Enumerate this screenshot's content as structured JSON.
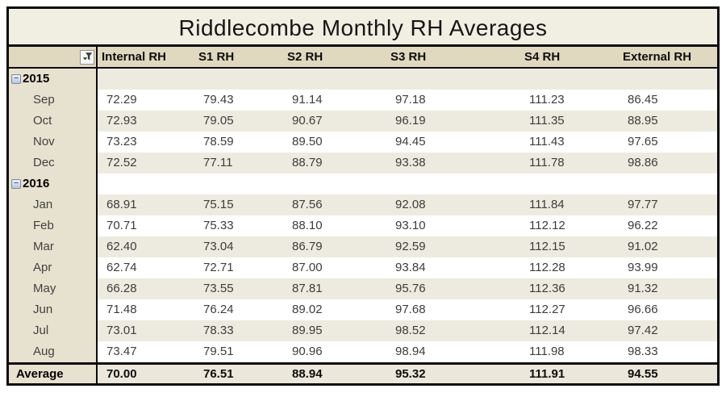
{
  "table": {
    "title": "Riddlecombe Monthly RH Averages",
    "collapse_glyph": "−",
    "columns": [
      "Internal RH",
      "S1 RH",
      "S2 RH",
      "S3 RH",
      "S4 RH",
      "External RH"
    ],
    "rows": [
      {
        "type": "group",
        "label": "2015",
        "values": [
          "",
          "",
          "",
          "",
          "",
          ""
        ]
      },
      {
        "type": "month",
        "label": "Sep",
        "values": [
          "72.29",
          "79.43",
          "91.14",
          "97.18",
          "111.23",
          "86.45"
        ]
      },
      {
        "type": "month",
        "label": "Oct",
        "values": [
          "72.93",
          "79.05",
          "90.67",
          "96.19",
          "111.35",
          "88.95"
        ]
      },
      {
        "type": "month",
        "label": "Nov",
        "values": [
          "73.23",
          "78.59",
          "89.50",
          "94.45",
          "111.43",
          "97.65"
        ]
      },
      {
        "type": "month",
        "label": "Dec",
        "values": [
          "72.52",
          "77.11",
          "88.79",
          "93.38",
          "111.78",
          "98.86"
        ]
      },
      {
        "type": "group",
        "label": "2016",
        "values": [
          "",
          "",
          "",
          "",
          "",
          ""
        ]
      },
      {
        "type": "month",
        "label": "Jan",
        "values": [
          "68.91",
          "75.15",
          "87.56",
          "92.08",
          "111.84",
          "97.77"
        ]
      },
      {
        "type": "month",
        "label": "Feb",
        "values": [
          "70.71",
          "75.33",
          "88.10",
          "93.10",
          "112.12",
          "96.22"
        ]
      },
      {
        "type": "month",
        "label": "Mar",
        "values": [
          "62.40",
          "73.04",
          "86.79",
          "92.59",
          "112.15",
          "91.02"
        ]
      },
      {
        "type": "month",
        "label": "Apr",
        "values": [
          "62.74",
          "72.71",
          "87.00",
          "93.84",
          "112.28",
          "93.99"
        ]
      },
      {
        "type": "month",
        "label": "May",
        "values": [
          "66.28",
          "73.55",
          "87.81",
          "95.76",
          "112.36",
          "91.32"
        ]
      },
      {
        "type": "month",
        "label": "Jun",
        "values": [
          "71.48",
          "76.24",
          "89.02",
          "97.68",
          "112.27",
          "96.66"
        ]
      },
      {
        "type": "month",
        "label": "Jul",
        "values": [
          "73.01",
          "78.33",
          "89.95",
          "98.52",
          "112.14",
          "97.42"
        ]
      },
      {
        "type": "month",
        "label": "Aug",
        "values": [
          "73.47",
          "79.51",
          "90.96",
          "98.94",
          "111.98",
          "98.33"
        ]
      }
    ],
    "average": {
      "label": "Average",
      "values": [
        "70.00",
        "76.51",
        "88.94",
        "95.32",
        "111.91",
        "94.55"
      ]
    }
  },
  "colors": {
    "title_bg": "#f1eee2",
    "header_bg": "#e0d9bf",
    "label_column_bg": "#e7e1cf",
    "band_bg": "#edeae0",
    "average_bg": "#ebe8db",
    "border": "#0b0b0b"
  }
}
